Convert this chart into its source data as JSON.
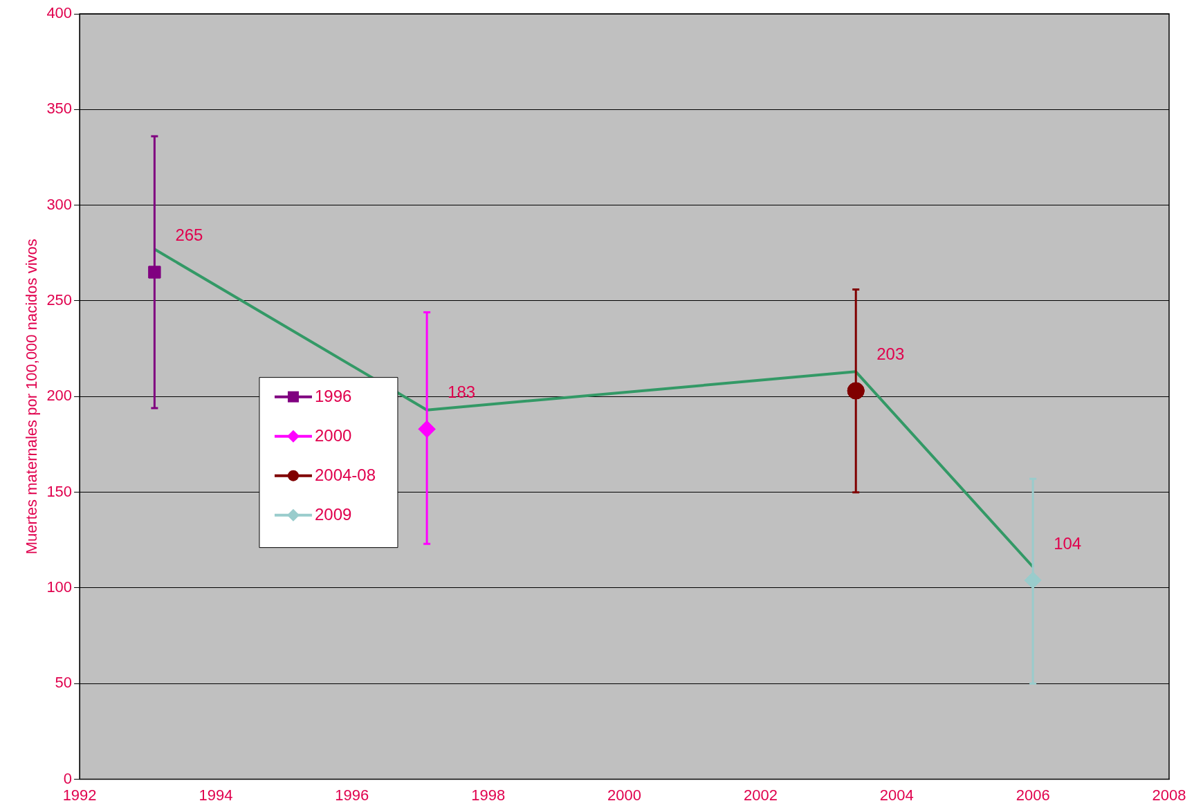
{
  "chart_data": {
    "type": "scatter",
    "ylabel": "Muertes maternales por 100,000 nacidos vivos",
    "xlim": [
      1992,
      2008
    ],
    "xticks": [
      1992,
      1994,
      1996,
      1998,
      2000,
      2002,
      2004,
      2006,
      2008
    ],
    "ylim": [
      0,
      400
    ],
    "yticks": [
      0,
      50,
      100,
      150,
      200,
      250,
      300,
      350,
      400
    ],
    "grid": "y",
    "legend": "left",
    "series": [
      {
        "type": "line",
        "color": "#339966",
        "marker": "none",
        "x": [
          1993.1,
          1997.1,
          2003.4,
          2006.0
        ],
        "values": [
          277,
          193,
          213,
          111
        ]
      },
      {
        "name": "1996",
        "color": "#800080",
        "marker": "square",
        "x": [
          1993.1
        ],
        "values": [
          265
        ],
        "errors": [
          [
            194,
            336
          ]
        ],
        "value_labels": [
          "265"
        ]
      },
      {
        "name": "2000",
        "color": "#ff00ff",
        "marker": "diamond",
        "x": [
          1997.1
        ],
        "values": [
          183
        ],
        "errors": [
          [
            123,
            244
          ]
        ],
        "value_labels": [
          "183"
        ]
      },
      {
        "name": "2004-08",
        "color": "#800000",
        "marker": "circle",
        "x": [
          2003.4
        ],
        "values": [
          203
        ],
        "errors": [
          [
            150,
            256
          ]
        ],
        "value_labels": [
          "203"
        ]
      },
      {
        "name": "2009",
        "color": "#99cccc",
        "marker": "diamond",
        "x": [
          2006.0
        ],
        "values": [
          104
        ],
        "errors": [
          [
            50,
            157
          ]
        ],
        "value_labels": [
          "104"
        ]
      }
    ]
  }
}
